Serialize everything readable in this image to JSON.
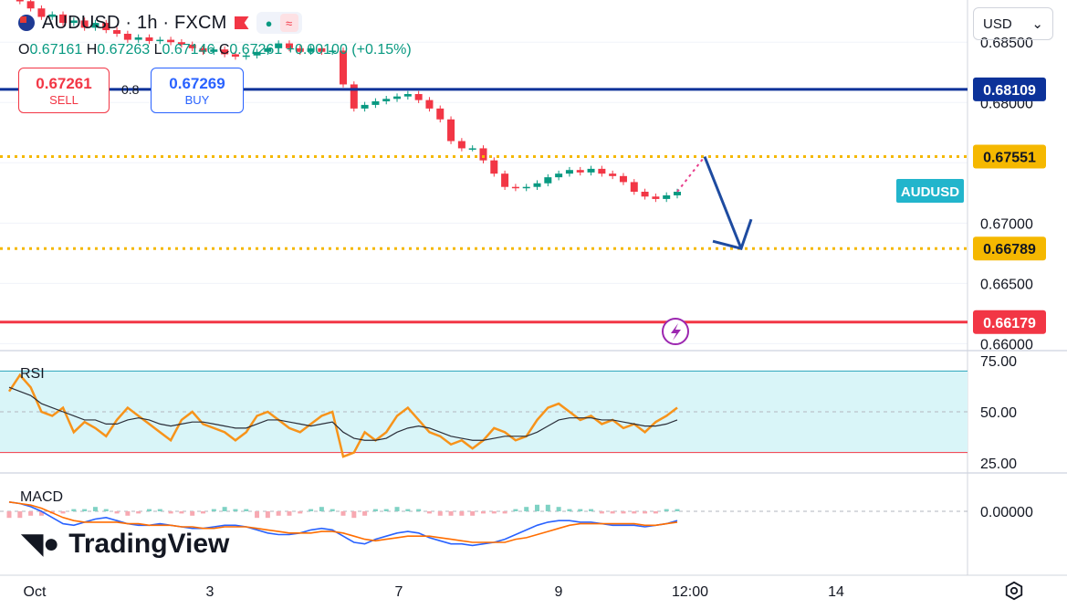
{
  "header": {
    "symbol": "AUDUSD · 1h · FXCM",
    "open_label": "O",
    "open": "0.67161",
    "high_label": "H",
    "high": "0.67263",
    "low_label": "L",
    "low": "0.67146",
    "close_label": "C",
    "close": "0.67261",
    "change": "+0.00100 (+0.15%)"
  },
  "trade": {
    "sell_price": "0.67261",
    "sell_label": "SELL",
    "spread": "0.8",
    "buy_price": "0.67269",
    "buy_label": "BUY"
  },
  "currency": "USD",
  "brand": "TradingView",
  "colors": {
    "up": "#089981",
    "down": "#f23645",
    "blue_line": "#0c3299",
    "orange": "#f7931a",
    "rsi_band": "#d9f5f8",
    "level": "#f5b800",
    "arrow": "#1e4ba0"
  },
  "chart_data": {
    "type": "line",
    "price_axis": {
      "ticks": [
        "0.68500",
        "0.68000",
        "0.67500",
        "0.67000",
        "0.66500",
        "0.66000"
      ],
      "ylim": [
        0.6595,
        0.6885
      ]
    },
    "x_ticks": [
      "Oct",
      "3",
      "7",
      "9",
      "12:00",
      "14"
    ],
    "levels": [
      {
        "label": "0.68109",
        "value": 0.68109,
        "style": "solid",
        "color": "#0c3299"
      },
      {
        "label": "0.67551",
        "value": 0.67551,
        "style": "dotted",
        "color": "#f5b800"
      },
      {
        "label": "0.66789",
        "value": 0.66789,
        "style": "dotted",
        "color": "#f5b800"
      },
      {
        "label": "0.66179",
        "value": 0.66179,
        "style": "solid",
        "color": "#f23645"
      }
    ],
    "current_label": "AUDUSD",
    "price_path": [
      0.6885,
      0.6884,
      0.6878,
      0.6871,
      0.6873,
      0.6866,
      0.6868,
      0.6862,
      0.6866,
      0.686,
      0.6857,
      0.6852,
      0.6854,
      0.6851,
      0.6852,
      0.685,
      0.6848,
      0.6845,
      0.6842,
      0.6844,
      0.684,
      0.6838,
      0.6839,
      0.6842,
      0.6845,
      0.6849,
      0.6845,
      0.6842,
      0.6845,
      0.6842,
      0.6843,
      0.6815,
      0.6795,
      0.6798,
      0.6801,
      0.6803,
      0.6805,
      0.6807,
      0.6802,
      0.6795,
      0.6786,
      0.6768,
      0.6762,
      0.6762,
      0.6752,
      0.6741,
      0.673,
      0.6729,
      0.673,
      0.6733,
      0.6738,
      0.6741,
      0.6744,
      0.6742,
      0.6745,
      0.6741,
      0.6739,
      0.6734,
      0.6726,
      0.6722,
      0.672,
      0.6723,
      0.6726
    ],
    "rsi": {
      "label": "RSI",
      "ticks": [
        "75.00",
        "50.00",
        "25.00"
      ],
      "ylim": [
        20,
        80
      ],
      "band": [
        30,
        70
      ],
      "values": [
        60,
        68,
        62,
        50,
        48,
        52,
        40,
        45,
        42,
        38,
        46,
        52,
        48,
        44,
        40,
        36,
        46,
        50,
        44,
        42,
        40,
        36,
        40,
        48,
        50,
        46,
        42,
        40,
        44,
        48,
        50,
        28,
        30,
        40,
        36,
        40,
        48,
        52,
        46,
        40,
        38,
        34,
        36,
        32,
        36,
        42,
        40,
        36,
        38,
        46,
        52,
        54,
        50,
        46,
        48,
        44,
        46,
        42,
        44,
        40,
        45,
        48,
        52
      ],
      "signal": [
        62,
        60,
        58,
        54,
        52,
        50,
        48,
        46,
        46,
        44,
        44,
        46,
        47,
        46,
        44,
        43,
        44,
        45,
        45,
        44,
        43,
        42,
        42,
        44,
        46,
        46,
        45,
        44,
        43,
        44,
        45,
        40,
        37,
        36,
        36,
        37,
        40,
        42,
        43,
        42,
        40,
        38,
        37,
        36,
        36,
        37,
        38,
        38,
        38,
        40,
        43,
        46,
        47,
        47,
        47,
        46,
        46,
        45,
        44,
        43,
        43,
        44,
        46
      ]
    },
    "macd": {
      "label": "MACD",
      "tick": "0.00000",
      "hist": [
        -3,
        -3,
        -2,
        -2,
        -1,
        -1,
        1,
        1,
        2,
        1,
        -1,
        -2,
        -1,
        1,
        1,
        -1,
        -1,
        -2,
        -1,
        1,
        2,
        1,
        1,
        -3,
        -3,
        -2,
        -2,
        -1,
        1,
        2,
        1,
        -2,
        -3,
        -2,
        1,
        1,
        2,
        1,
        1,
        -1,
        -2,
        -2,
        -2,
        -2,
        -1,
        -1,
        -1,
        1,
        2,
        3,
        3,
        2,
        1,
        1,
        1,
        -1,
        -1,
        -1,
        -1,
        -1,
        -1,
        1,
        1
      ],
      "line": [
        6,
        5,
        3,
        0,
        -4,
        -8,
        -9,
        -7,
        -5,
        -4,
        -6,
        -8,
        -9,
        -9,
        -8,
        -9,
        -10,
        -11,
        -11,
        -10,
        -9,
        -9,
        -10,
        -12,
        -14,
        -15,
        -15,
        -14,
        -12,
        -11,
        -12,
        -16,
        -20,
        -21,
        -18,
        -16,
        -14,
        -13,
        -14,
        -17,
        -19,
        -21,
        -21,
        -22,
        -21,
        -20,
        -18,
        -15,
        -12,
        -9,
        -7,
        -6,
        -6,
        -7,
        -7,
        -8,
        -9,
        -9,
        -9,
        -10,
        -9,
        -8,
        -6
      ],
      "signal": [
        6,
        5,
        4,
        2,
        -1,
        -4,
        -6,
        -7,
        -7,
        -7,
        -7,
        -8,
        -8,
        -9,
        -9,
        -9,
        -10,
        -10,
        -11,
        -11,
        -10,
        -10,
        -10,
        -11,
        -12,
        -13,
        -14,
        -14,
        -14,
        -13,
        -13,
        -14,
        -16,
        -18,
        -19,
        -18,
        -17,
        -16,
        -16,
        -16,
        -17,
        -18,
        -19,
        -20,
        -20,
        -20,
        -20,
        -18,
        -17,
        -15,
        -13,
        -11,
        -9,
        -8,
        -8,
        -8,
        -8,
        -8,
        -8,
        -9,
        -9,
        -8,
        -7
      ]
    }
  }
}
